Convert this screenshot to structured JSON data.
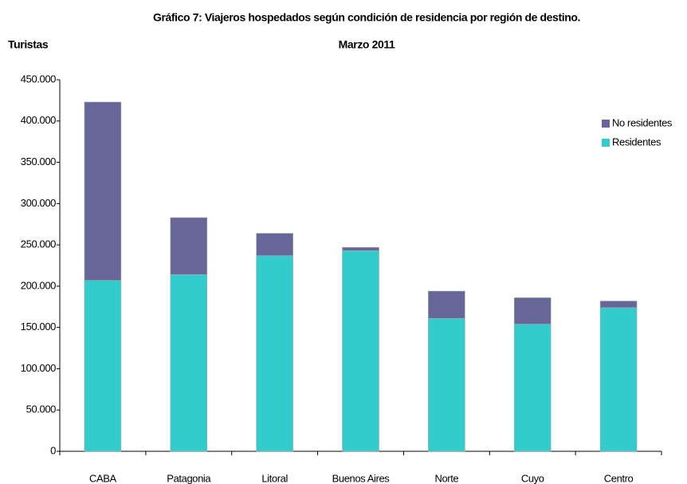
{
  "chart_data": {
    "type": "stacked_bar",
    "title": "Gráfico 7: Viajeros hospedados según condición de residencia por región de destino.",
    "subtitle": "Marzo 2011",
    "y_label": "Turistas",
    "categories": [
      "CABA",
      "Patagonia",
      "Litoral",
      "Buenos Aires",
      "Norte",
      "Cuyo",
      "Centro"
    ],
    "series": [
      {
        "name": "Residentes",
        "color": "#33cccc",
        "values": [
          207000,
          214000,
          237000,
          243000,
          161000,
          154000,
          174000
        ]
      },
      {
        "name": "No residentes",
        "color": "#666699",
        "values": [
          216000,
          69000,
          27000,
          4000,
          33000,
          32000,
          8000
        ]
      }
    ],
    "ylim": [
      0,
      450000
    ],
    "yticks": [
      0,
      {
        "value": 50000,
        "label": "50.000"
      },
      {
        "value": 100000,
        "label": "100.000"
      },
      {
        "value": 150000,
        "label": "150.000"
      },
      {
        "value": 200000,
        "label": "200.000"
      },
      {
        "value": 250000,
        "label": "250.000"
      },
      {
        "value": 300000,
        "label": "300.000"
      },
      {
        "value": 350000,
        "label": "350.000"
      },
      {
        "value": 400000,
        "label": "400.000"
      },
      {
        "value": 450000,
        "label": "450.000"
      }
    ],
    "legend": "upper right",
    "grid": false
  }
}
